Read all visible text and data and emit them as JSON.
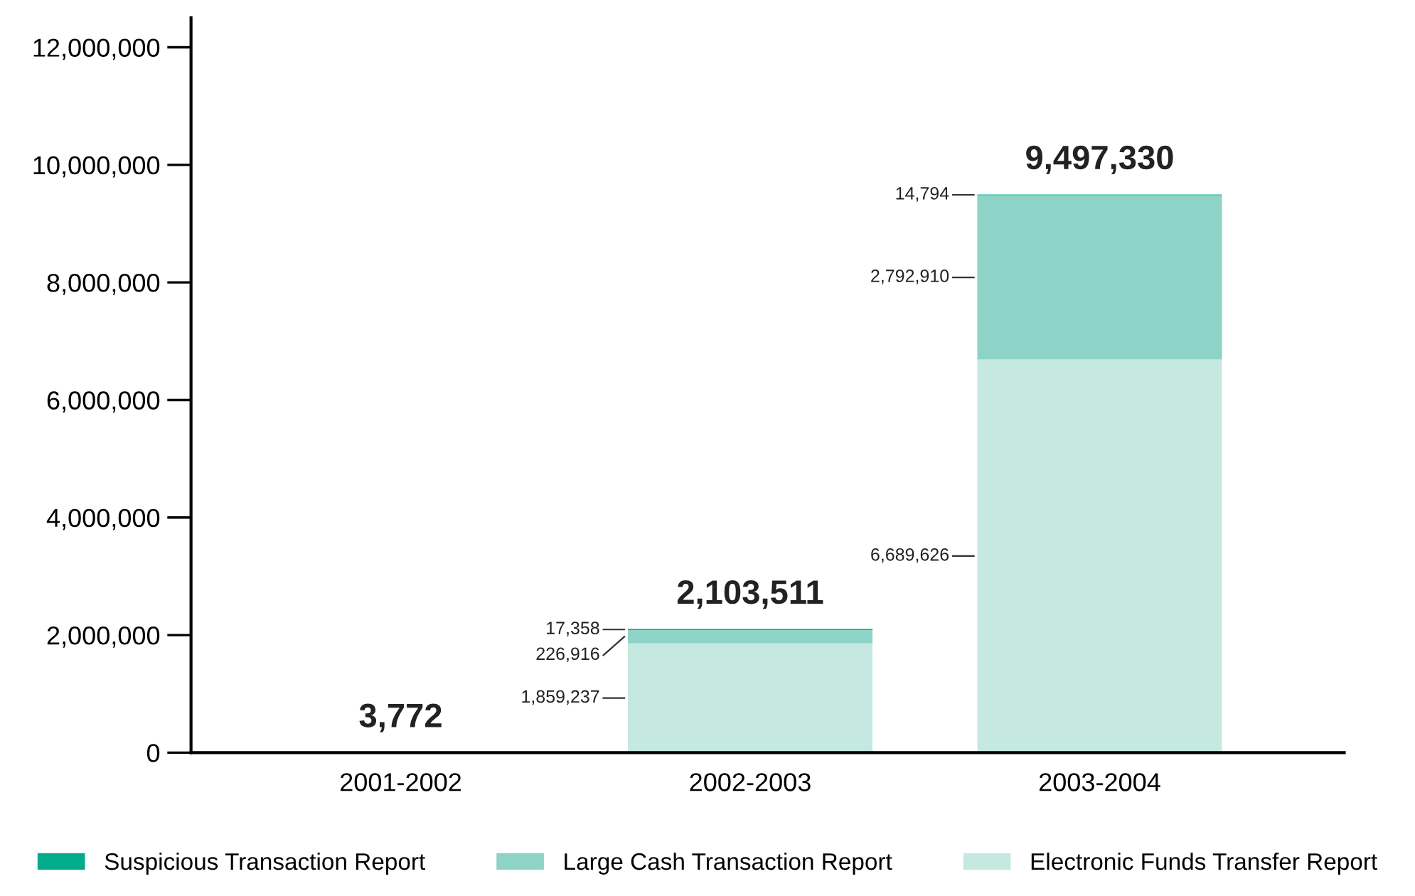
{
  "chart_data": {
    "type": "bar",
    "stacked": true,
    "categories": [
      "2001-2002",
      "2002-2003",
      "2003-2004"
    ],
    "series": [
      {
        "name": "Electronic Funds Transfer Report",
        "color": "#c5e8e0",
        "values": [
          0,
          1859237,
          6689626
        ],
        "value_labels": [
          null,
          "1,859,237",
          "6,689,626"
        ]
      },
      {
        "name": "Large Cash Transaction Report",
        "color": "#8dd3c7",
        "values": [
          0,
          226916,
          2792910
        ],
        "value_labels": [
          null,
          "226,916",
          "2,792,910"
        ]
      },
      {
        "name": "Suspicious Transaction Report",
        "color": "#00ab8e",
        "values": [
          3772,
          17358,
          14794
        ],
        "value_labels": [
          null,
          "17,358",
          "14,794"
        ]
      }
    ],
    "totals": [
      "3,772",
      "2,103,511",
      "9,497,330"
    ],
    "ylim": [
      0,
      12500000
    ],
    "yticks": [
      {
        "value": 0,
        "label": "0"
      },
      {
        "value": 2000000,
        "label": "2,000,000"
      },
      {
        "value": 4000000,
        "label": "4,000,000"
      },
      {
        "value": 6000000,
        "label": "6,000,000"
      },
      {
        "value": 8000000,
        "label": "8,000,000"
      },
      {
        "value": 10000000,
        "label": "10,000,000"
      },
      {
        "value": 12000000,
        "label": "12,000,000"
      }
    ],
    "grid": false,
    "legend": "bottom"
  }
}
